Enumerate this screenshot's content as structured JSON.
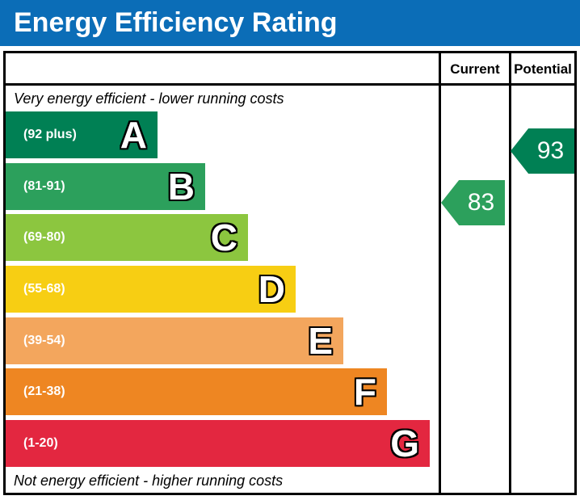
{
  "title": "Energy Efficiency Rating",
  "table": {
    "col_current": "Current",
    "col_potential": "Potential",
    "top_note": "Very energy efficient - lower running costs",
    "bottom_note": "Not energy efficient - higher running costs"
  },
  "colors": {
    "header_blue": "#0b6db7",
    "border": "#000000"
  },
  "chart_data": {
    "type": "bar",
    "title": "Energy Efficiency Rating",
    "categories": [
      "A",
      "B",
      "C",
      "D",
      "E",
      "F",
      "G"
    ],
    "bands": [
      {
        "letter": "A",
        "range_label": "(92 plus)",
        "range": [
          92,
          100
        ],
        "color": "#008054",
        "rel_width": 0.35
      },
      {
        "letter": "B",
        "range_label": "(81-91)",
        "range": [
          81,
          91
        ],
        "color": "#2ca05c",
        "rel_width": 0.46
      },
      {
        "letter": "C",
        "range_label": "(69-80)",
        "range": [
          69,
          80
        ],
        "color": "#8cc63f",
        "rel_width": 0.56
      },
      {
        "letter": "D",
        "range_label": "(55-68)",
        "range": [
          55,
          68
        ],
        "color": "#f7ce13",
        "rel_width": 0.67
      },
      {
        "letter": "E",
        "range_label": "(39-54)",
        "range": [
          39,
          54
        ],
        "color": "#f3a65d",
        "rel_width": 0.78
      },
      {
        "letter": "F",
        "range_label": "(21-38)",
        "range": [
          21,
          38
        ],
        "color": "#ee8622",
        "rel_width": 0.88
      },
      {
        "letter": "G",
        "range_label": "(1-20)",
        "range": [
          1,
          20
        ],
        "color": "#e32740",
        "rel_width": 0.98
      }
    ],
    "markers": [
      {
        "column": "current",
        "value": 83,
        "band": "B",
        "color": "#2ca05c"
      },
      {
        "column": "potential",
        "value": 93,
        "band": "A",
        "color": "#008054"
      }
    ],
    "annotations": [
      "Very energy efficient - lower running costs",
      "Not energy efficient - higher running costs"
    ],
    "legend_position": "none",
    "grid": false
  }
}
